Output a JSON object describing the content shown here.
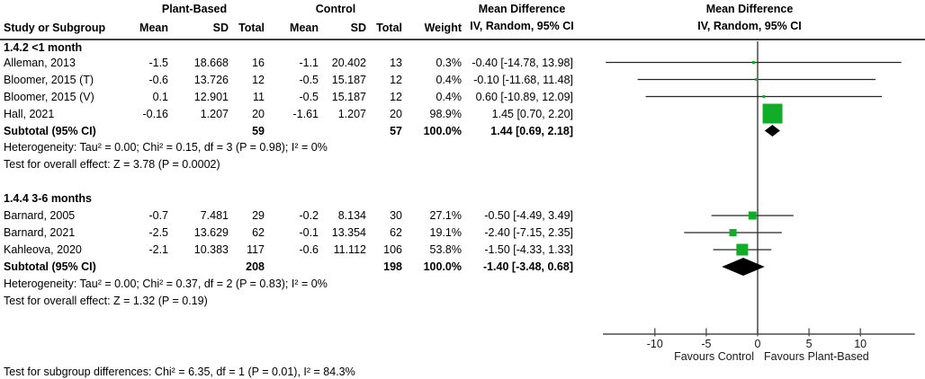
{
  "chart_data": {
    "type": "forest",
    "group1_label": "Plant-Based",
    "group2_label": "Control",
    "columns": [
      "Study or Subgroup",
      "Mean",
      "SD",
      "Total",
      "Mean",
      "SD",
      "Total",
      "Weight"
    ],
    "effect_text_column": {
      "title": "Mean Difference",
      "subtitle": "IV, Random, 95% CI"
    },
    "effect_plot_column": {
      "title": "Mean Difference",
      "subtitle": "IV, Random, 95% CI"
    },
    "subgroups": [
      {
        "label": "1.4.2 <1 month",
        "studies": [
          {
            "name": "Alleman, 2013",
            "mean1": "-1.5",
            "sd1": "18.668",
            "total1": "16",
            "mean2": "-1.1",
            "sd2": "20.402",
            "total2": "13",
            "weight": "0.3%",
            "ci_text": "-0.40 [-14.78, 13.98]",
            "md": -0.4,
            "lo": -14.78,
            "hi": 13.98,
            "size": 3
          },
          {
            "name": "Bloomer, 2015 (T)",
            "mean1": "-0.6",
            "sd1": "13.726",
            "total1": "12",
            "mean2": "-0.5",
            "sd2": "15.187",
            "total2": "12",
            "weight": "0.4%",
            "ci_text": "-0.10 [-11.68, 11.48]",
            "md": -0.1,
            "lo": -11.68,
            "hi": 11.48,
            "size": 3
          },
          {
            "name": "Bloomer, 2015 (V)",
            "mean1": "0.1",
            "sd1": "12.901",
            "total1": "11",
            "mean2": "-0.5",
            "sd2": "15.187",
            "total2": "12",
            "weight": "0.4%",
            "ci_text": "0.60 [-10.89, 12.09]",
            "md": 0.6,
            "lo": -10.89,
            "hi": 12.09,
            "size": 3
          },
          {
            "name": "Hall, 2021",
            "mean1": "-0.16",
            "sd1": "1.207",
            "total1": "20",
            "mean2": "-1.61",
            "sd2": "1.207",
            "total2": "20",
            "weight": "98.9%",
            "ci_text": "1.45 [0.70, 2.20]",
            "md": 1.45,
            "lo": 0.7,
            "hi": 2.2,
            "size": 22
          }
        ],
        "subtotal": {
          "label": "Subtotal (95% CI)",
          "total1": "59",
          "total2": "57",
          "weight": "100.0%",
          "ci_text": "1.44 [0.69, 2.18]",
          "md": 1.44,
          "lo": 0.69,
          "hi": 2.18
        },
        "heterogeneity": "Heterogeneity: Tau² = 0.00; Chi² = 0.15, df = 3 (P = 0.98); I² = 0%",
        "overall_effect": "Test for overall effect: Z = 3.78 (P = 0.0002)"
      },
      {
        "label": "1.4.4 3-6 months",
        "studies": [
          {
            "name": "Barnard, 2005",
            "mean1": "-0.7",
            "sd1": "7.481",
            "total1": "29",
            "mean2": "-0.2",
            "sd2": "8.134",
            "total2": "30",
            "weight": "27.1%",
            "ci_text": "-0.50 [-4.49, 3.49]",
            "md": -0.5,
            "lo": -4.49,
            "hi": 3.49,
            "size": 9
          },
          {
            "name": "Barnard, 2021",
            "mean1": "-2.5",
            "sd1": "13.629",
            "total1": "62",
            "mean2": "-0.1",
            "sd2": "13.354",
            "total2": "62",
            "weight": "19.1%",
            "ci_text": "-2.40 [-7.15, 2.35]",
            "md": -2.4,
            "lo": -7.15,
            "hi": 2.35,
            "size": 8
          },
          {
            "name": "Kahleova, 2020",
            "mean1": "-2.1",
            "sd1": "10.383",
            "total1": "117",
            "mean2": "-0.6",
            "sd2": "11.112",
            "total2": "106",
            "weight": "53.8%",
            "ci_text": "-1.50 [-4.33, 1.33]",
            "md": -1.5,
            "lo": -4.33,
            "hi": 1.33,
            "size": 13
          }
        ],
        "subtotal": {
          "label": "Subtotal (95% CI)",
          "total1": "208",
          "total2": "198",
          "weight": "100.0%",
          "ci_text": "-1.40 [-3.48, 0.68]",
          "md": -1.4,
          "lo": -3.48,
          "hi": 0.68
        },
        "heterogeneity": "Heterogeneity: Tau² = 0.00; Chi² = 0.37, df = 2 (P = 0.83); I² = 0%",
        "overall_effect": "Test for overall effect: Z = 1.32 (P = 0.19)"
      }
    ],
    "subgroup_test": "Test for subgroup differences: Chi² = 6.35, df = 1 (P = 0.01), I² = 84.3%",
    "axis": {
      "ticks": [
        -10,
        -5,
        0,
        5,
        10
      ],
      "xmin": -15.05,
      "xmax": 15.3,
      "favours_left": "Favours Control",
      "favours_right": "Favours Plant-Based"
    },
    "colors": {
      "square": "#11AC28",
      "diamond": "#000000",
      "ci_line": "#262626",
      "axis_line": "#4a4a4a"
    }
  }
}
